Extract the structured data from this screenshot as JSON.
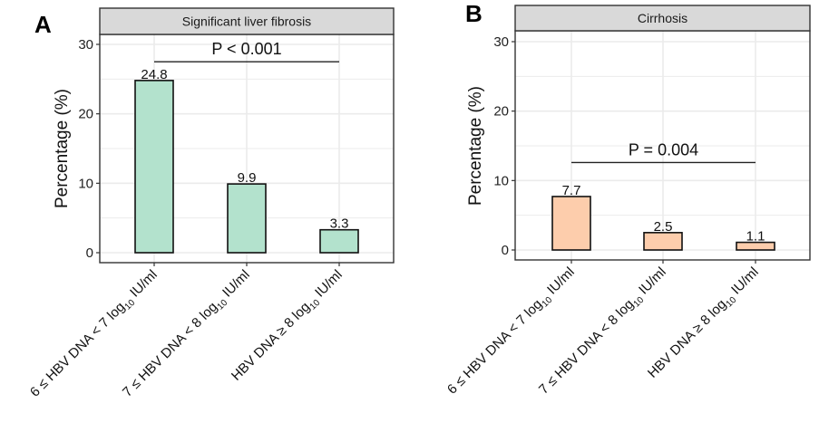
{
  "chart_data": [
    {
      "type": "bar",
      "panel_letter": "A",
      "title": "Significant liver fibrosis",
      "xlabel": "",
      "ylabel": "Percentage (%)",
      "ylim": [
        0,
        30
      ],
      "yticks": [
        0,
        10,
        20,
        30
      ],
      "grid": true,
      "categories": [
        {
          "main": "6 ≤ HBV DNA < 7 log",
          "sub": "10",
          "unit": " IU/ml"
        },
        {
          "main": "7 ≤ HBV DNA < 8 log",
          "sub": "10",
          "unit": " IU/ml"
        },
        {
          "main": "HBV DNA ≥ 8 log",
          "sub": "10",
          "unit": " IU/ml"
        }
      ],
      "values": [
        24.8,
        9.9,
        3.3
      ],
      "data_labels": [
        "24.8",
        "9.9",
        "3.3"
      ],
      "bar_color": "#b3e2cd",
      "annotation": {
        "text": "P < 0.001",
        "y": 27.5,
        "from_category": 0,
        "to_category": 2
      }
    },
    {
      "type": "bar",
      "panel_letter": "B",
      "title": "Cirrhosis",
      "xlabel": "",
      "ylabel": "Percentage (%)",
      "ylim": [
        0,
        30
      ],
      "yticks": [
        0,
        10,
        20,
        30
      ],
      "grid": true,
      "categories": [
        {
          "main": "6 ≤ HBV DNA < 7 log",
          "sub": "10",
          "unit": " IU/ml"
        },
        {
          "main": "7 ≤ HBV DNA < 8 log",
          "sub": "10",
          "unit": " IU/ml"
        },
        {
          "main": "HBV DNA ≥ 8 log",
          "sub": "10",
          "unit": " IU/ml"
        }
      ],
      "values": [
        7.7,
        2.5,
        1.1
      ],
      "data_labels": [
        "7.7",
        "2.5",
        "1.1"
      ],
      "bar_color": "#fdcdac",
      "annotation": {
        "text": "P = 0.004",
        "y": 12.6,
        "from_category": 0,
        "to_category": 2
      }
    }
  ]
}
